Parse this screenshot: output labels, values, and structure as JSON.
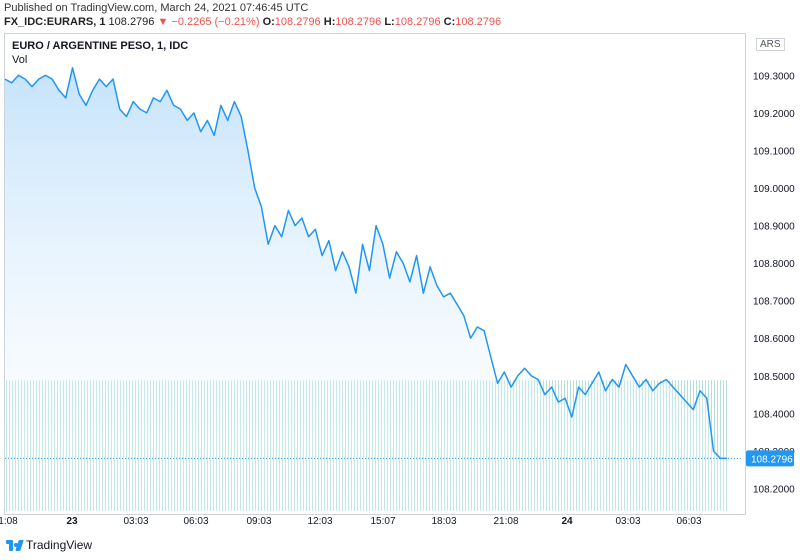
{
  "header": {
    "published": "Published on TradingView.com, March 24, 2021 07:46:45 UTC",
    "symbol": "FX_IDC:EURARS, 1",
    "last": "108.2796",
    "change": "▼ −0.2265 (−0.21%)",
    "o_label": "O:",
    "o_value": "108.2796",
    "h_label": "H:",
    "h_value": "108.2796",
    "l_label": "L:",
    "l_value": "108.2796",
    "c_label": "C:",
    "c_value": "108.2796"
  },
  "legend": {
    "title": "EURO / ARGENTINE PESO, 1, IDC",
    "volume_label": "Vol"
  },
  "currency": "ARS",
  "price_tag": "108.2796",
  "footer": {
    "brand": "TradingView"
  },
  "colors": {
    "line": "#2196f3",
    "fill_top": "#bbdefb",
    "volume": "#26a69a",
    "tag_bg": "#2196f3"
  },
  "chart_data": {
    "type": "area",
    "title": "EURO / ARGENTINE PESO, 1, IDC",
    "y_ticks": [
      "109.3000",
      "109.2000",
      "109.1000",
      "109.0000",
      "108.9000",
      "108.8000",
      "108.7000",
      "108.6000",
      "108.5000",
      "108.4000",
      "108.3000",
      "108.2000"
    ],
    "ylim": [
      108.14,
      109.41
    ],
    "x_tick_labels": [
      "1:08",
      "23",
      "03:03",
      "06:03",
      "09:03",
      "12:03",
      "15:07",
      "18:03",
      "21:08",
      "24",
      "03:03",
      "06:03"
    ],
    "grid": false,
    "series": [
      {
        "values": [
          109.29,
          109.28,
          109.3,
          109.29,
          109.27,
          109.29,
          109.3,
          109.29,
          109.26,
          109.24,
          109.32,
          109.25,
          109.22,
          109.26,
          109.29,
          109.27,
          109.29,
          109.21,
          109.19,
          109.23,
          109.21,
          109.2,
          109.24,
          109.23,
          109.26,
          109.22,
          109.21,
          109.18,
          109.2,
          109.15,
          109.18,
          109.14,
          109.22,
          109.18,
          109.23,
          109.19,
          109.1,
          109.0,
          108.95,
          108.85,
          108.9,
          108.87,
          108.94,
          108.9,
          108.92,
          108.87,
          108.89,
          108.82,
          108.86,
          108.78,
          108.83,
          108.79,
          108.72,
          108.85,
          108.78,
          108.9,
          108.85,
          108.76,
          108.83,
          108.8,
          108.75,
          108.82,
          108.72,
          108.79,
          108.74,
          108.71,
          108.72,
          108.69,
          108.66,
          108.6,
          108.63,
          108.62,
          108.55,
          108.48,
          108.51,
          108.47,
          108.5,
          108.52,
          108.5,
          108.49,
          108.45,
          108.47,
          108.43,
          108.44,
          108.39,
          108.47,
          108.45,
          108.48,
          108.51,
          108.46,
          108.49,
          108.47,
          108.53,
          108.5,
          108.47,
          108.49,
          108.46,
          108.48,
          108.49,
          108.47,
          108.45,
          108.43,
          108.41,
          108.46,
          108.44,
          108.3,
          108.28,
          108.28
        ]
      }
    ],
    "volume": {
      "baseline_level": 108.488
    }
  }
}
